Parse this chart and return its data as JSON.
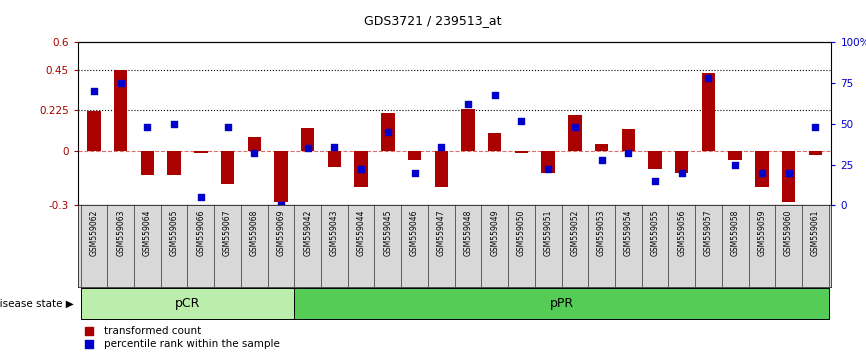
{
  "title": "GDS3721 / 239513_at",
  "samples": [
    "GSM559062",
    "GSM559063",
    "GSM559064",
    "GSM559065",
    "GSM559066",
    "GSM559067",
    "GSM559068",
    "GSM559069",
    "GSM559042",
    "GSM559043",
    "GSM559044",
    "GSM559045",
    "GSM559046",
    "GSM559047",
    "GSM559048",
    "GSM559049",
    "GSM559050",
    "GSM559051",
    "GSM559052",
    "GSM559053",
    "GSM559054",
    "GSM559055",
    "GSM559056",
    "GSM559057",
    "GSM559058",
    "GSM559059",
    "GSM559060",
    "GSM559061"
  ],
  "bar_values": [
    0.22,
    0.45,
    -0.13,
    -0.13,
    -0.01,
    -0.18,
    0.08,
    -0.28,
    0.13,
    -0.09,
    -0.2,
    0.21,
    -0.05,
    -0.2,
    0.23,
    0.1,
    -0.01,
    -0.12,
    0.2,
    0.04,
    0.12,
    -0.1,
    -0.12,
    0.43,
    -0.05,
    -0.2,
    -0.28,
    -0.02
  ],
  "percentile_values": [
    70,
    75,
    48,
    50,
    5,
    48,
    32,
    0,
    35,
    36,
    22,
    45,
    20,
    36,
    62,
    68,
    52,
    22,
    48,
    28,
    32,
    15,
    20,
    78,
    25,
    20,
    20,
    48
  ],
  "pcr_count": 8,
  "ppr_count": 20,
  "ylim_left": [
    -0.3,
    0.6
  ],
  "ylim_right": [
    0,
    100
  ],
  "yticks_left": [
    -0.3,
    0.0,
    0.225,
    0.45,
    0.6
  ],
  "ytick_labels_left": [
    "-0.3",
    "0",
    "0.225",
    "0.45",
    "0.6"
  ],
  "yticks_right": [
    0,
    25,
    50,
    75,
    100
  ],
  "ytick_labels_right": [
    "0",
    "25",
    "50",
    "75",
    "100%"
  ],
  "hlines": [
    0.225,
    0.45
  ],
  "zero_line": 0.0,
  "bar_color": "#aa0000",
  "dot_color": "#0000cc",
  "pcr_color": "#bbeeaa",
  "ppr_color": "#55cc55",
  "label_bar": "transformed count",
  "label_dot": "percentile rank within the sample",
  "disease_state_label": "disease state",
  "pcr_label": "pCR",
  "ppr_label": "pPR"
}
